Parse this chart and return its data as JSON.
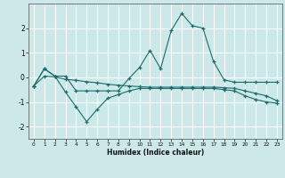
{
  "xlabel": "Humidex (Indice chaleur)",
  "ylabel": "",
  "bg_color": "#cce8e8",
  "grid_color": "#ffffff",
  "line_color": "#1a6b6b",
  "x": [
    0,
    1,
    2,
    3,
    4,
    5,
    6,
    7,
    8,
    9,
    10,
    11,
    12,
    13,
    14,
    15,
    16,
    17,
    18,
    19,
    20,
    21,
    22,
    23
  ],
  "line1": [
    -0.35,
    0.35,
    0.05,
    0.05,
    -0.55,
    -0.55,
    -0.55,
    -0.55,
    -0.55,
    -0.05,
    0.4,
    1.1,
    0.35,
    1.9,
    2.6,
    2.1,
    2.0,
    0.65,
    -0.1,
    -0.2,
    -0.2,
    -0.2,
    -0.2,
    -0.2
  ],
  "line2": [
    -0.35,
    0.35,
    0.05,
    -0.6,
    -1.2,
    -1.8,
    -1.3,
    -0.85,
    -0.7,
    -0.55,
    -0.45,
    -0.45,
    -0.45,
    -0.45,
    -0.45,
    -0.45,
    -0.45,
    -0.45,
    -0.5,
    -0.55,
    -0.75,
    -0.9,
    -1.0,
    -1.05
  ],
  "line3": [
    -0.35,
    0.05,
    0.02,
    -0.08,
    -0.12,
    -0.18,
    -0.22,
    -0.28,
    -0.32,
    -0.35,
    -0.38,
    -0.4,
    -0.4,
    -0.4,
    -0.4,
    -0.4,
    -0.4,
    -0.4,
    -0.42,
    -0.45,
    -0.55,
    -0.65,
    -0.75,
    -0.95
  ],
  "ylim": [
    -2.5,
    3.0
  ],
  "yticks": [
    -2,
    -1,
    0,
    1,
    2
  ],
  "xticks": [
    0,
    1,
    2,
    3,
    4,
    5,
    6,
    7,
    8,
    9,
    10,
    11,
    12,
    13,
    14,
    15,
    16,
    17,
    18,
    19,
    20,
    21,
    22,
    23
  ]
}
